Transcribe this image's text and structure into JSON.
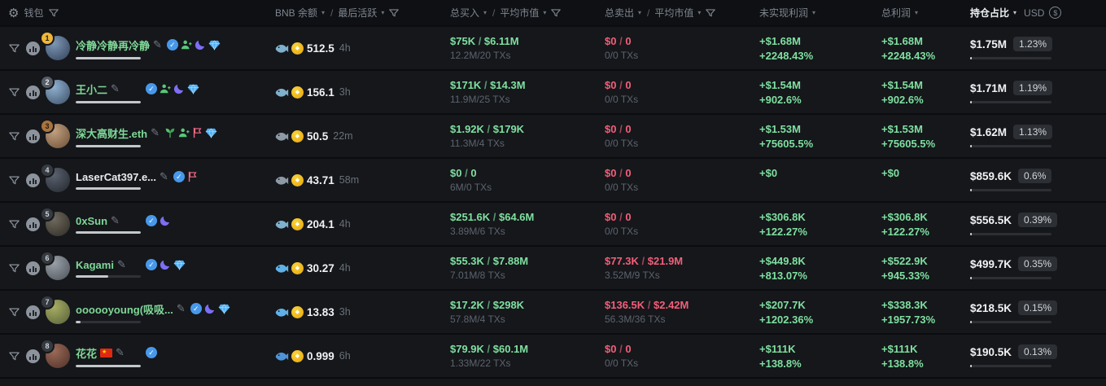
{
  "table": {
    "header": {
      "wallet": "钱包",
      "bnb_balance": "BNB 余额",
      "last_active": "最后活跃",
      "total_buy": "总买入",
      "avg_mcap": "平均市值",
      "total_sell": "总卖出",
      "avg_mcap2": "平均市值",
      "unrealized_profit": "未实现利润",
      "total_profit": "总利润",
      "position_share": "持仓占比",
      "currency": "USD",
      "slash": "/"
    },
    "colors": {
      "green": "#7fe0a0",
      "red": "#f35f79",
      "coin_gold": "#f0b90b",
      "verified_blue": "#4798ea",
      "moon_purple": "#7d6ef5",
      "diamond_blue": "#54b0f2"
    },
    "rows": [
      {
        "rank": "1",
        "tier": "gold",
        "name": "冷静冷静再冷静",
        "name_color": "green",
        "cn_flag": false,
        "badges": [
          "verified",
          "person",
          "moon",
          "diamond"
        ],
        "underline_pct": 100,
        "fish": "whale",
        "balance": "512.5",
        "last_active": "4h",
        "buy_amount": "$75K",
        "buy_mcap": "$6.11M",
        "buy_sub": "12.2M/20 TXs",
        "sell_amount": "$0",
        "sell_mcap": "0",
        "sell_sub": "0/0 TXs",
        "unrealized_value": "+$1.68M",
        "unrealized_pct": "+2248.43%",
        "profit_value": "+$1.68M",
        "profit_pct": "+2248.43%",
        "position_value": "$1.75M",
        "position_pct": "1.23%",
        "bar_pct": 1.23,
        "avatar": [
          "#7e98b5",
          "#31405a"
        ]
      },
      {
        "rank": "2",
        "tier": "silver",
        "name": "王小二",
        "name_color": "green",
        "cn_flag": false,
        "badges": [
          "verified",
          "person",
          "moon",
          "diamond"
        ],
        "underline_pct": 100,
        "fish": "whale",
        "balance": "156.1",
        "last_active": "3h",
        "buy_amount": "$171K",
        "buy_mcap": "$14.3M",
        "buy_sub": "11.9M/25 TXs",
        "sell_amount": "$0",
        "sell_mcap": "0",
        "sell_sub": "0/0 TXs",
        "unrealized_value": "+$1.54M",
        "unrealized_pct": "+902.6%",
        "profit_value": "+$1.54M",
        "profit_pct": "+902.6%",
        "position_value": "$1.71M",
        "position_pct": "1.19%",
        "bar_pct": 1.19,
        "avatar": [
          "#8fb0cf",
          "#3c4f66"
        ]
      },
      {
        "rank": "3",
        "tier": "bronze",
        "name": "深大高财生.eth",
        "name_color": "green",
        "cn_flag": false,
        "badges": [
          "leaf",
          "person",
          "flag",
          "diamond"
        ],
        "underline_pct": 100,
        "fish": "shark",
        "balance": "50.5",
        "last_active": "22m",
        "buy_amount": "$1.92K",
        "buy_mcap": "$179K",
        "buy_sub": "11.3M/4 TXs",
        "sell_amount": "$0",
        "sell_mcap": "0",
        "sell_sub": "0/0 TXs",
        "unrealized_value": "+$1.53M",
        "unrealized_pct": "+75605.5%",
        "profit_value": "+$1.53M",
        "profit_pct": "+75605.5%",
        "position_value": "$1.62M",
        "position_pct": "1.13%",
        "bar_pct": 1.13,
        "avatar": [
          "#c2a081",
          "#6b4f35"
        ]
      },
      {
        "rank": "4",
        "tier": "default",
        "name": "LaserCat397.e...",
        "name_color": "white",
        "cn_flag": false,
        "badges": [
          "verified",
          "flag"
        ],
        "underline_pct": 100,
        "fish": "shark",
        "balance": "43.71",
        "last_active": "58m",
        "buy_amount": "$0",
        "buy_mcap": "0",
        "buy_sub": "6M/0 TXs",
        "sell_amount": "$0",
        "sell_mcap": "0",
        "sell_sub": "0/0 TXs",
        "unrealized_value": "+$0",
        "unrealized_pct": "",
        "profit_value": "+$0",
        "profit_pct": "",
        "position_value": "$859.6K",
        "position_pct": "0.6%",
        "bar_pct": 0.6,
        "avatar": [
          "#5a6270",
          "#23262c"
        ]
      },
      {
        "rank": "5",
        "tier": "default",
        "name": "0xSun",
        "name_color": "green",
        "cn_flag": false,
        "badges": [
          "verified",
          "moon"
        ],
        "underline_pct": 100,
        "fish": "whale",
        "balance": "204.1",
        "last_active": "4h",
        "buy_amount": "$251.6K",
        "buy_mcap": "$64.6M",
        "buy_sub": "3.89M/6 TXs",
        "sell_amount": "$0",
        "sell_mcap": "0",
        "sell_sub": "0/0 TXs",
        "unrealized_value": "+$306.8K",
        "unrealized_pct": "+122.27%",
        "profit_value": "+$306.8K",
        "profit_pct": "+122.27%",
        "position_value": "$556.5K",
        "position_pct": "0.39%",
        "bar_pct": 0.39,
        "avatar": [
          "#6f6a5e",
          "#2d2a24"
        ]
      },
      {
        "rank": "6",
        "tier": "default",
        "name": "Kagami",
        "name_color": "green",
        "cn_flag": false,
        "badges": [
          "verified",
          "moon",
          "diamond"
        ],
        "underline_pct": 50,
        "fish": "dolphin",
        "balance": "30.27",
        "last_active": "4h",
        "buy_amount": "$55.3K",
        "buy_mcap": "$7.88M",
        "buy_sub": "7.01M/8 TXs",
        "sell_amount": "$77.3K",
        "sell_mcap": "$21.9M",
        "sell_sub": "3.52M/9 TXs",
        "unrealized_value": "+$449.8K",
        "unrealized_pct": "+813.07%",
        "profit_value": "+$522.9K",
        "profit_pct": "+945.33%",
        "position_value": "$499.7K",
        "position_pct": "0.35%",
        "bar_pct": 0.35,
        "avatar": [
          "#9aa0a8",
          "#4c5258"
        ]
      },
      {
        "rank": "7",
        "tier": "default",
        "name": "oooooyoung(吸吸...",
        "name_color": "green",
        "cn_flag": false,
        "badges": [
          "verified",
          "moon",
          "diamond"
        ],
        "underline_pct": 8,
        "fish": "dolphin",
        "balance": "13.83",
        "last_active": "3h",
        "buy_amount": "$17.2K",
        "buy_mcap": "$298K",
        "buy_sub": "57.8M/4 TXs",
        "sell_amount": "$136.5K",
        "sell_mcap": "$2.42M",
        "sell_sub": "56.3M/36 TXs",
        "unrealized_value": "+$207.7K",
        "unrealized_pct": "+1202.36%",
        "profit_value": "+$338.3K",
        "profit_pct": "+1957.73%",
        "position_value": "$218.5K",
        "position_pct": "0.15%",
        "bar_pct": 0.15,
        "avatar": [
          "#a8ad62",
          "#55603a"
        ]
      },
      {
        "rank": "8",
        "tier": "default",
        "name": "花花",
        "name_color": "green",
        "cn_flag": true,
        "badges": [
          "verified"
        ],
        "underline_pct": 100,
        "fish": "fish",
        "balance": "0.999",
        "last_active": "6h",
        "buy_amount": "$79.9K",
        "buy_mcap": "$60.1M",
        "buy_sub": "1.33M/22 TXs",
        "sell_amount": "$0",
        "sell_mcap": "0",
        "sell_sub": "0/0 TXs",
        "unrealized_value": "+$111K",
        "unrealized_pct": "+138.8%",
        "profit_value": "+$111K",
        "profit_pct": "+138.8%",
        "position_value": "$190.5K",
        "position_pct": "0.13%",
        "bar_pct": 0.13,
        "avatar": [
          "#9b6a58",
          "#4e3028"
        ]
      }
    ]
  }
}
